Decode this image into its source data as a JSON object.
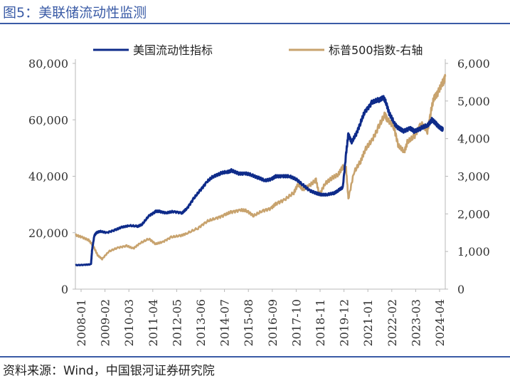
{
  "figure": {
    "title": "图5：美联储流动性监测",
    "source": "资料来源：Wind，中国银河证券研究院"
  },
  "chart_data": {
    "type": "line",
    "title": "美联储流动性监测",
    "x_tick_labels": [
      "2008-01",
      "2009-02",
      "2010-03",
      "2011-04",
      "2012-05",
      "2013-06",
      "2014-07",
      "2015-08",
      "2016-09",
      "2017-10",
      "2018-11",
      "2019-12",
      "2021-01",
      "2022-02",
      "2023-03",
      "2024-04"
    ],
    "x_range": [
      2008.0,
      2024.6
    ],
    "y_left": {
      "range": [
        0,
        80000
      ],
      "tick_labels": [
        "0",
        "20,000",
        "40,000",
        "60,000",
        "80,000"
      ],
      "ticks": [
        0,
        20000,
        40000,
        60000,
        80000
      ]
    },
    "y_right": {
      "range": [
        0,
        6000
      ],
      "tick_labels": [
        "0",
        "1,000",
        "2,000",
        "3,000",
        "4,000",
        "5,000",
        "6,000"
      ],
      "ticks": [
        0,
        1000,
        2000,
        3000,
        4000,
        5000,
        6000
      ]
    },
    "legend": {
      "position": "top"
    },
    "series": [
      {
        "name": "美国流动性指标",
        "axis": "left",
        "color": "#0e2b8a",
        "x": [
          2008.0,
          2008.4,
          2008.7,
          2008.75,
          2008.85,
          2008.95,
          2009.1,
          2009.4,
          2009.8,
          2010.1,
          2010.4,
          2010.8,
          2011.0,
          2011.3,
          2011.6,
          2011.8,
          2012.1,
          2012.4,
          2012.8,
          2013.0,
          2013.3,
          2013.6,
          2013.9,
          2014.2,
          2014.5,
          2014.8,
          2015.0,
          2015.3,
          2015.6,
          2015.9,
          2016.2,
          2016.5,
          2016.8,
          2017.0,
          2017.3,
          2017.6,
          2017.9,
          2018.2,
          2018.5,
          2018.8,
          2019.0,
          2019.3,
          2019.6,
          2019.8,
          2020.0,
          2020.15,
          2020.25,
          2020.4,
          2020.6,
          2020.8,
          2021.0,
          2021.3,
          2021.6,
          2021.8,
          2021.95,
          2022.1,
          2022.3,
          2022.5,
          2022.7,
          2023.0,
          2023.2,
          2023.5,
          2023.8,
          2024.0,
          2024.2,
          2024.4,
          2024.5
        ],
        "y": [
          8500,
          8600,
          8800,
          14000,
          19000,
          20000,
          20500,
          20000,
          21000,
          22000,
          22500,
          22300,
          23000,
          26000,
          27500,
          27500,
          27000,
          27500,
          27000,
          28500,
          32000,
          35000,
          38000,
          40000,
          41000,
          41500,
          42000,
          41000,
          41000,
          40500,
          39500,
          38500,
          39000,
          40000,
          40000,
          40000,
          39000,
          37000,
          35000,
          34000,
          33500,
          33500,
          34000,
          35000,
          36000,
          48000,
          55000,
          52000,
          55000,
          59000,
          63000,
          66000,
          67000,
          68000,
          66000,
          62000,
          59000,
          57000,
          56000,
          57000,
          56000,
          57000,
          58000,
          60000,
          58500,
          57000,
          56500
        ]
      },
      {
        "name": "标普500指数-右轴",
        "axis": "right",
        "color": "#c8a36e",
        "x": [
          2008.0,
          2008.3,
          2008.6,
          2008.8,
          2009.0,
          2009.2,
          2009.5,
          2009.9,
          2010.3,
          2010.6,
          2010.9,
          2011.3,
          2011.6,
          2011.9,
          2012.3,
          2012.7,
          2013.0,
          2013.5,
          2013.9,
          2014.3,
          2014.7,
          2015.0,
          2015.4,
          2015.7,
          2016.0,
          2016.4,
          2016.8,
          2017.0,
          2017.4,
          2017.8,
          2018.0,
          2018.2,
          2018.5,
          2018.8,
          2018.95,
          2019.2,
          2019.5,
          2019.8,
          2020.0,
          2020.15,
          2020.25,
          2020.5,
          2020.8,
          2021.0,
          2021.3,
          2021.6,
          2021.9,
          2022.0,
          2022.3,
          2022.5,
          2022.75,
          2022.9,
          2023.2,
          2023.5,
          2023.8,
          2023.95,
          2024.1,
          2024.3,
          2024.5,
          2024.6
        ],
        "y": [
          1440,
          1380,
          1300,
          1150,
          900,
          800,
          1000,
          1100,
          1150,
          1080,
          1220,
          1340,
          1200,
          1250,
          1380,
          1420,
          1480,
          1620,
          1800,
          1880,
          1970,
          2050,
          2100,
          2080,
          1950,
          2080,
          2150,
          2270,
          2380,
          2560,
          2800,
          2650,
          2750,
          2900,
          2500,
          2800,
          2950,
          3050,
          3250,
          3200,
          2400,
          3100,
          3400,
          3700,
          3950,
          4300,
          4650,
          4500,
          4300,
          3800,
          3650,
          3900,
          4050,
          4400,
          4200,
          4700,
          5100,
          5250,
          5500,
          5650
        ]
      }
    ]
  }
}
